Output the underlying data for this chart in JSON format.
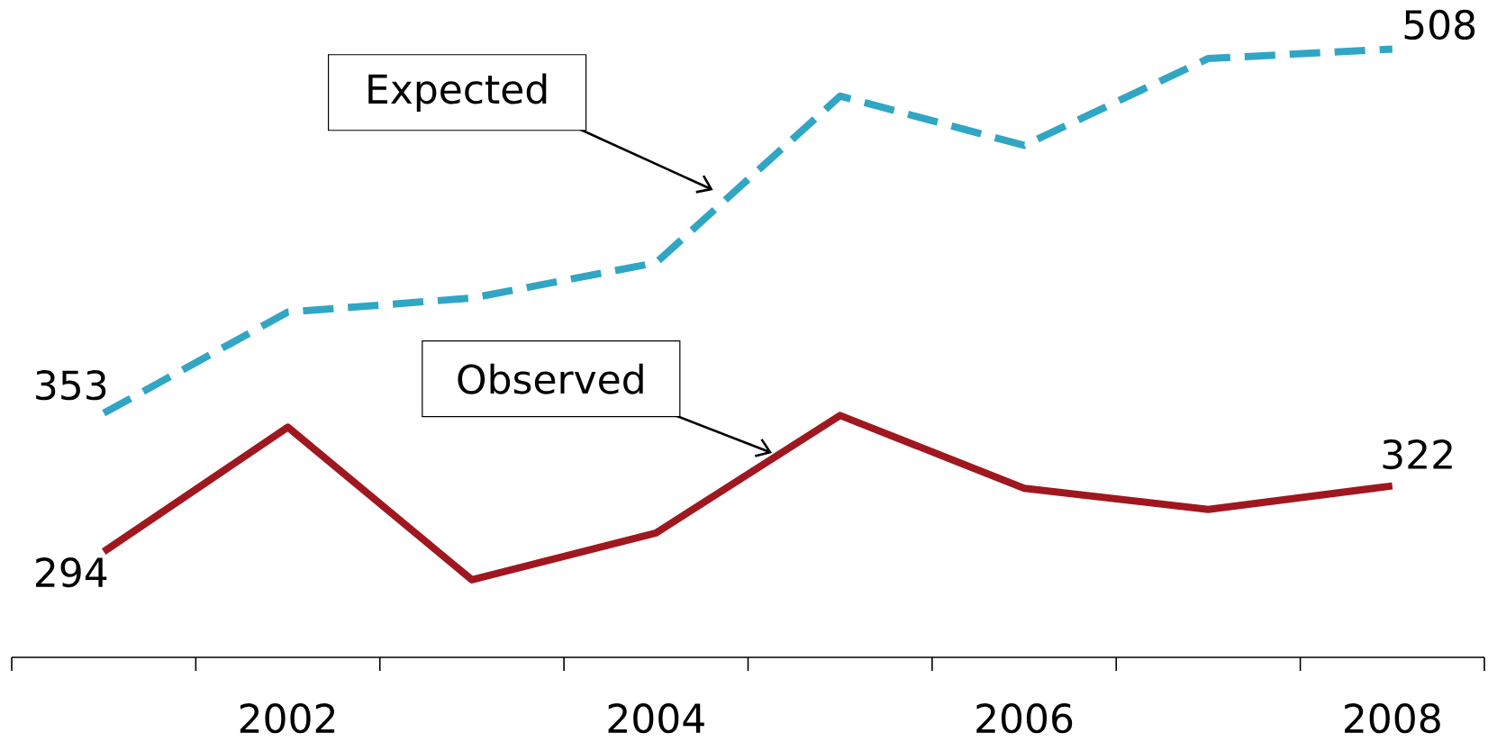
{
  "chart_data": {
    "type": "line",
    "categories": [
      null,
      "2002",
      null,
      "2004",
      null,
      "2006",
      null,
      "2008"
    ],
    "tick_labels": "x",
    "marker": "none",
    "series": [
      {
        "color": "#31a6c4",
        "line_style": "dashed",
        "values": [
          353,
          396,
          402,
          417,
          488,
          467,
          504,
          508
        ],
        "value_labels": [
          "353",
          null,
          null,
          null,
          null,
          null,
          null,
          "508"
        ]
      },
      {
        "color": "#a0171f",
        "line_style": "solid",
        "values": [
          294,
          347,
          282,
          302,
          352,
          321,
          312,
          322
        ],
        "value_labels": [
          "294",
          null,
          null,
          null,
          null,
          null,
          null,
          "322"
        ]
      }
    ],
    "annotations": [
      "Expected",
      "Observed"
    ]
  }
}
